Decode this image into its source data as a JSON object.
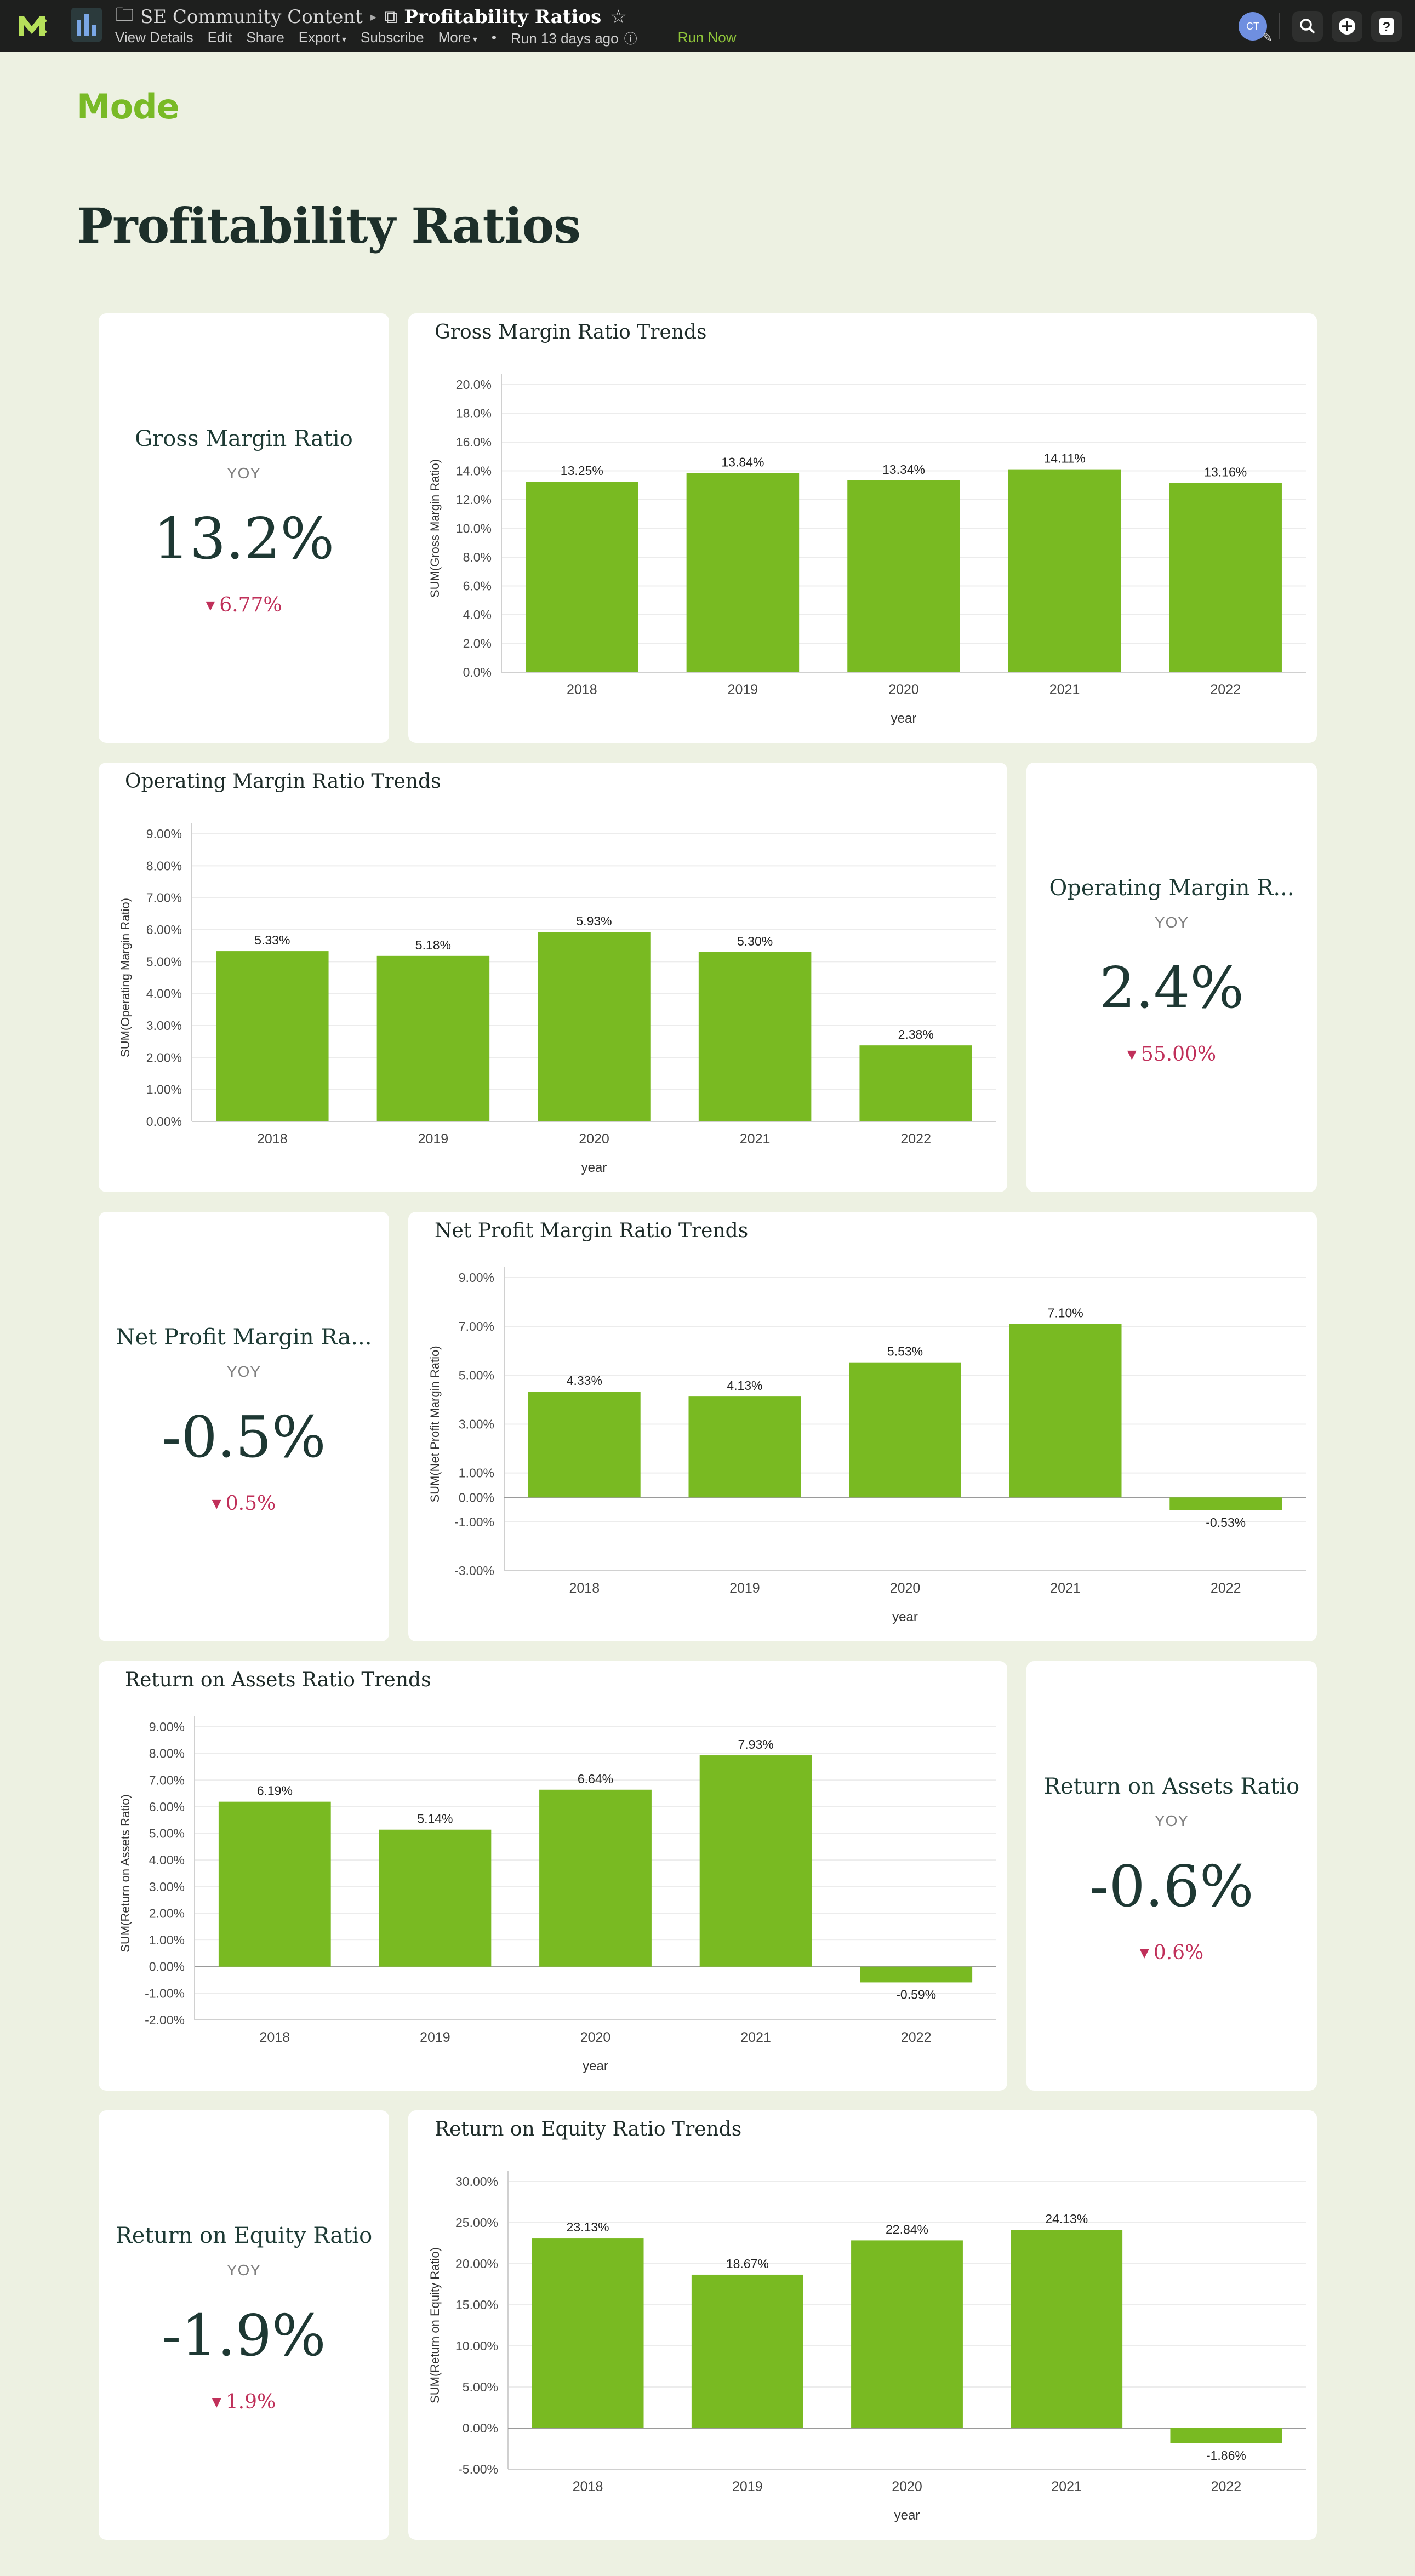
{
  "topbar": {
    "workspace": "SE Community Content",
    "report_title": "Profitability Ratios",
    "menu": [
      "View Details",
      "Edit",
      "Share",
      "Export",
      "Subscribe",
      "More"
    ],
    "run_status": "Run 13 days ago",
    "run_now": "Run Now",
    "avatar_initials": "CT"
  },
  "header": {
    "logo": "Mode",
    "title": "Profitability Ratios"
  },
  "kpis": {
    "gross": {
      "title": "Gross Margin Ratio",
      "sub": "YOY",
      "value": "13.2%",
      "delta": "6.77%"
    },
    "operating": {
      "title": "Operating Margin R...",
      "sub": "YOY",
      "value": "2.4%",
      "delta": "55.00%"
    },
    "net": {
      "title": "Net Profit Margin Ra...",
      "sub": "YOY",
      "value": "-0.5%",
      "delta": "0.5%"
    },
    "roa": {
      "title": "Return on Assets Ratio",
      "sub": "YOY",
      "value": "-0.6%",
      "delta": "0.6%"
    },
    "roe": {
      "title": "Return on Equity Ratio",
      "sub": "YOY",
      "value": "-1.9%",
      "delta": "1.9%"
    }
  },
  "colors": {
    "bar": "#79ba22",
    "negative": "#c0305a",
    "accent": "#79ba27"
  },
  "chart_data": [
    {
      "id": "gross",
      "type": "bar",
      "title": "Gross Margin Ratio Trends",
      "categories": [
        "2018",
        "2019",
        "2020",
        "2021",
        "2022"
      ],
      "values": [
        13.25,
        13.84,
        13.34,
        14.11,
        13.16
      ],
      "labels": [
        "13.25%",
        "13.84%",
        "13.34%",
        "14.11%",
        "13.16%"
      ],
      "xlabel": "year",
      "ylabel": "SUM(Gross Margin Ratio)",
      "ylim": [
        0,
        20
      ],
      "ticks": [
        0,
        2,
        4,
        6,
        8,
        10,
        12,
        14,
        16,
        18,
        20
      ],
      "tick_labels": [
        "0.0%",
        "2.0%",
        "4.0%",
        "6.0%",
        "8.0%",
        "10.0%",
        "12.0%",
        "14.0%",
        "16.0%",
        "18.0%",
        "20.0%"
      ],
      "grid": true
    },
    {
      "id": "operating",
      "type": "bar",
      "title": "Operating Margin Ratio Trends",
      "categories": [
        "2018",
        "2019",
        "2020",
        "2021",
        "2022"
      ],
      "values": [
        5.33,
        5.18,
        5.93,
        5.3,
        2.38
      ],
      "labels": [
        "5.33%",
        "5.18%",
        "5.93%",
        "5.30%",
        "2.38%"
      ],
      "xlabel": "year",
      "ylabel": "SUM(Operating Margin Ratio)",
      "ylim": [
        0,
        9
      ],
      "ticks": [
        0,
        1,
        2,
        3,
        4,
        5,
        6,
        7,
        8,
        9
      ],
      "tick_labels": [
        "0.00%",
        "1.00%",
        "2.00%",
        "3.00%",
        "4.00%",
        "5.00%",
        "6.00%",
        "7.00%",
        "8.00%",
        "9.00%"
      ],
      "grid": true
    },
    {
      "id": "net",
      "type": "bar",
      "title": "Net Profit Margin Ratio Trends",
      "categories": [
        "2018",
        "2019",
        "2020",
        "2021",
        "2022"
      ],
      "values": [
        4.33,
        4.13,
        5.53,
        7.1,
        -0.53
      ],
      "labels": [
        "4.33%",
        "4.13%",
        "5.53%",
        "7.10%",
        "-0.53%"
      ],
      "xlabel": "year",
      "ylabel": "SUM(Net Profit Margin Ratio)",
      "ylim": [
        -3,
        9
      ],
      "ticks": [
        -3,
        -1,
        0,
        1,
        3,
        5,
        7,
        9
      ],
      "tick_labels": [
        "-3.00%",
        "-1.00%",
        "0.00%",
        "1.00%",
        "3.00%",
        "5.00%",
        "7.00%",
        "9.00%"
      ],
      "grid": true
    },
    {
      "id": "roa",
      "type": "bar",
      "title": "Return on Assets Ratio Trends",
      "categories": [
        "2018",
        "2019",
        "2020",
        "2021",
        "2022"
      ],
      "values": [
        6.19,
        5.14,
        6.64,
        7.93,
        -0.59
      ],
      "labels": [
        "6.19%",
        "5.14%",
        "6.64%",
        "7.93%",
        "-0.59%"
      ],
      "xlabel": "year",
      "ylabel": "SUM(Return on Assets Ratio)",
      "ylim": [
        -2,
        9
      ],
      "ticks": [
        -2,
        -1,
        0,
        1,
        2,
        3,
        4,
        5,
        6,
        7,
        8,
        9
      ],
      "tick_labels": [
        "-2.00%",
        "-1.00%",
        "0.00%",
        "1.00%",
        "2.00%",
        "3.00%",
        "4.00%",
        "5.00%",
        "6.00%",
        "7.00%",
        "8.00%",
        "9.00%"
      ],
      "grid": true
    },
    {
      "id": "roe",
      "type": "bar",
      "title": "Return on Equity Ratio Trends",
      "categories": [
        "2018",
        "2019",
        "2020",
        "2021",
        "2022"
      ],
      "values": [
        23.13,
        18.67,
        22.84,
        24.13,
        -1.86
      ],
      "labels": [
        "23.13%",
        "18.67%",
        "22.84%",
        "24.13%",
        "-1.86%"
      ],
      "xlabel": "year",
      "ylabel": "SUM(Return on Equity Ratio)",
      "ylim": [
        -5,
        30
      ],
      "ticks": [
        -5,
        0,
        5,
        10,
        15,
        20,
        25,
        30
      ],
      "tick_labels": [
        "-5.00%",
        "0.00%",
        "5.00%",
        "10.00%",
        "15.00%",
        "20.00%",
        "25.00%",
        "30.00%"
      ],
      "grid": true
    }
  ]
}
